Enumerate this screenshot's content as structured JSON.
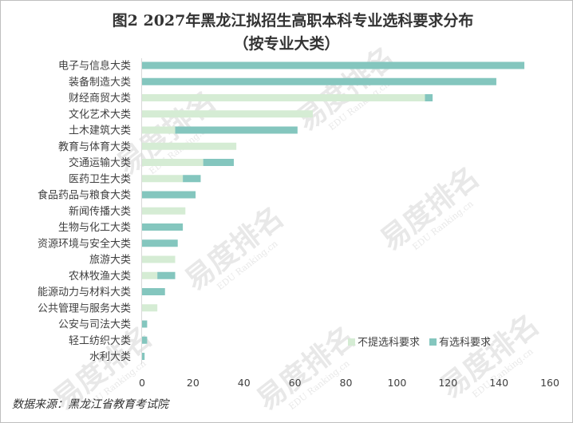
{
  "chart_data": {
    "type": "bar",
    "orientation": "horizontal",
    "stacked": true,
    "title": "图2 2027年黑龙江拟招生高职本科专业选科要求分布",
    "subtitle": "（按专业大类）",
    "categories": [
      "电子与信息大类",
      "装备制造大类",
      "财经商贸大类",
      "文化艺术大类",
      "土木建筑大类",
      "教育与体育大类",
      "交通运输大类",
      "医药卫生大类",
      "食品药品与粮食大类",
      "新闻传播大类",
      "生物与化工大类",
      "资源环境与安全大类",
      "旅游大类",
      "农林牧渔大类",
      "能源动力与材料大类",
      "公共管理与服务大类",
      "公安与司法大类",
      "轻工纺织大类",
      "水利大类"
    ],
    "series": [
      {
        "name": "不提选科要求",
        "color": "#d5ecd4",
        "values": [
          0,
          0,
          111,
          67,
          13,
          37,
          24,
          16,
          0,
          17,
          0,
          0,
          13,
          6,
          0,
          6,
          0,
          0,
          0
        ]
      },
      {
        "name": "有选科要求",
        "color": "#84c6be",
        "values": [
          150,
          139,
          3,
          0,
          48,
          0,
          12,
          7,
          21,
          0,
          16,
          14,
          0,
          7,
          9,
          0,
          2,
          2,
          1
        ]
      }
    ],
    "x_ticks": [
      0,
      20,
      40,
      60,
      80,
      100,
      120,
      140,
      160
    ],
    "xlim": [
      0,
      160
    ],
    "grid": false,
    "legend_position": "bottom-right"
  },
  "source": "数据来源：黑龙江省教育考试院",
  "watermark": {
    "brand": "易度排名",
    "sub": "EDU Ranking.cn"
  }
}
